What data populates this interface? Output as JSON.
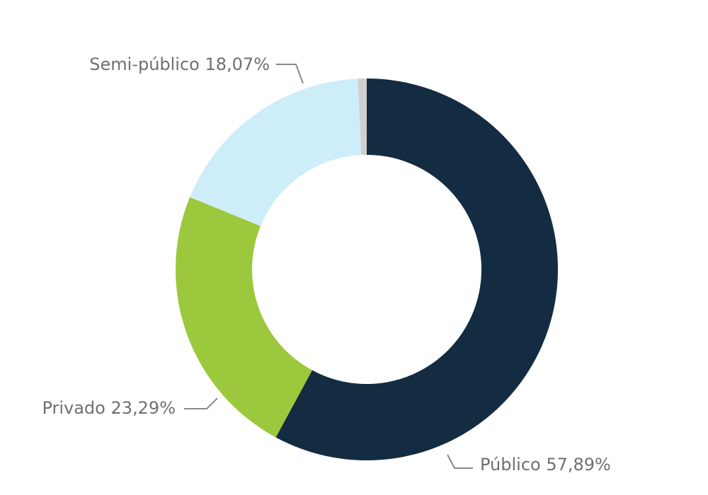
{
  "chart_data": {
    "type": "pie",
    "variant": "donut",
    "categories": [
      "Público",
      "Privado",
      "Semi-público",
      ""
    ],
    "values": [
      57.89,
      23.29,
      18.07,
      0.75
    ],
    "labels": [
      "Público 57,89%",
      "Privado 23,29%",
      "Semi-público 18,07%",
      ""
    ],
    "colors": [
      "#142c42",
      "#9cc83d",
      "#cdeef9",
      "#cfcfcf"
    ],
    "start": "top",
    "direction": "clockwise",
    "legend": "none"
  }
}
